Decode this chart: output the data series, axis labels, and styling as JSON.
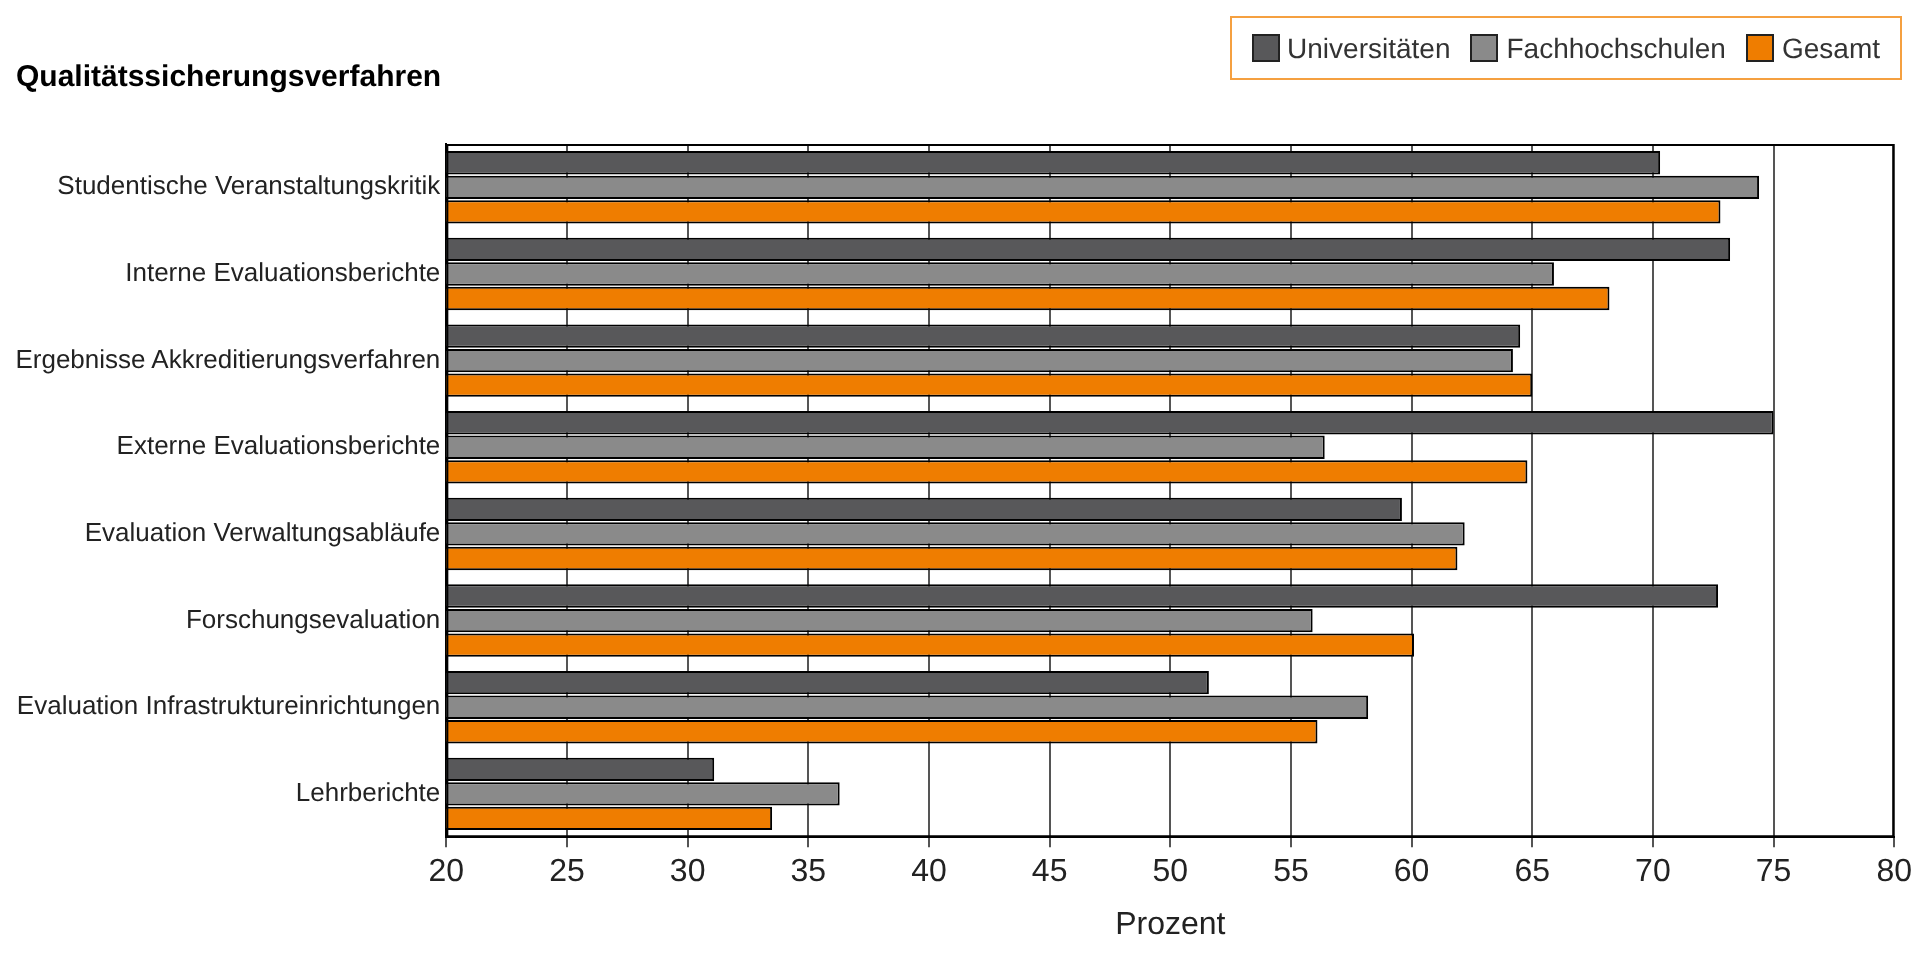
{
  "chart_data": {
    "type": "bar",
    "orientation": "horizontal",
    "title": "Qualitätssicherungsverfahren",
    "xlabel": "Prozent",
    "categories": [
      "Studentische Veranstaltungskritik",
      "Interne Evaluationsberichte",
      "Ergebnisse Akkreditierungsverfahren",
      "Externe Evaluationsberichte",
      "Evaluation Verwaltungsabläufe",
      "Forschungsevaluation",
      "Evaluation Infrastruktureinrichtungen",
      "Lehrberichte"
    ],
    "series": [
      {
        "name": "Universitäten",
        "color": "#58585a",
        "values": [
          70.3,
          73.2,
          64.5,
          75.0,
          59.6,
          72.7,
          51.6,
          31.1
        ]
      },
      {
        "name": "Fachhochschulen",
        "color": "#8a8a8a",
        "values": [
          74.4,
          65.9,
          64.2,
          56.4,
          62.2,
          55.9,
          58.2,
          36.3
        ]
      },
      {
        "name": "Gesamt",
        "color": "#ef7d00",
        "values": [
          72.8,
          68.2,
          65.0,
          64.8,
          61.9,
          60.1,
          56.1,
          33.5
        ]
      }
    ],
    "xlim": [
      20,
      80
    ],
    "xticks": [
      20,
      25,
      30,
      35,
      40,
      45,
      50,
      55,
      60,
      65,
      70,
      75,
      80
    ],
    "grid": "x",
    "legend": "top right"
  }
}
